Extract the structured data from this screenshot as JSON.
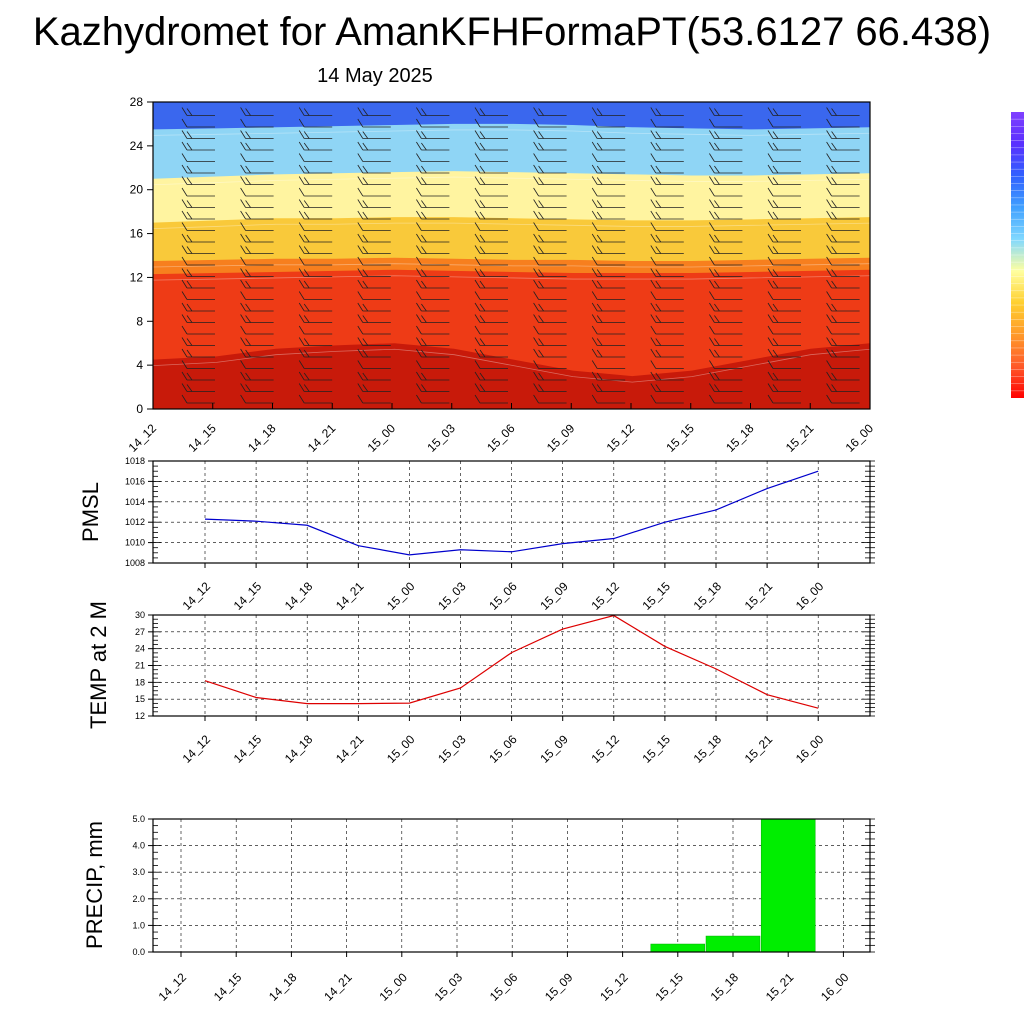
{
  "header": {
    "title": "Kazhydromet for AmanKFHFormaPT(53.6127 66.438)",
    "date": "14 May 2025"
  },
  "chart_data": [
    {
      "type": "heatmap",
      "name": "vertical-cross-section",
      "x": [
        "14_12",
        "14_15",
        "14_18",
        "14_21",
        "15_00",
        "15_03",
        "15_06",
        "15_09",
        "15_12",
        "15_15",
        "15_18",
        "15_21",
        "16_00"
      ],
      "y_ticks": [
        "0",
        "4",
        "8",
        "12",
        "16",
        "20",
        "24",
        "28"
      ],
      "ylim": [
        0,
        28
      ],
      "levels_per_column": [
        [
          4.5,
          12.3,
          13.5,
          17.0,
          21.0,
          25.5
        ],
        [
          4.8,
          12.4,
          13.6,
          17.2,
          21.2,
          25.6
        ],
        [
          5.5,
          12.5,
          13.7,
          17.4,
          21.4,
          25.7
        ],
        [
          5.8,
          12.6,
          13.7,
          17.4,
          21.5,
          25.8
        ],
        [
          6.0,
          12.7,
          13.8,
          17.5,
          21.6,
          25.9
        ],
        [
          5.5,
          12.6,
          13.7,
          17.5,
          21.7,
          26.0
        ],
        [
          4.5,
          12.5,
          13.6,
          17.4,
          21.6,
          26.0
        ],
        [
          3.5,
          12.4,
          13.6,
          17.3,
          21.5,
          25.9
        ],
        [
          3.0,
          12.4,
          13.5,
          17.2,
          21.4,
          25.7
        ],
        [
          3.5,
          12.4,
          13.5,
          17.2,
          21.3,
          25.6
        ],
        [
          4.5,
          12.5,
          13.6,
          17.3,
          21.3,
          25.5
        ],
        [
          5.5,
          12.6,
          13.7,
          17.4,
          21.4,
          25.6
        ],
        [
          6.0,
          12.7,
          13.8,
          17.5,
          21.5,
          25.7
        ]
      ],
      "colors": [
        "#c81a0a",
        "#ee3b16",
        "#f77f1e",
        "#f9c93a",
        "#fff4a0",
        "#8fd5f5",
        "#3a67ee",
        "#2a1dee",
        "#6a2df2",
        "#8f50f5"
      ]
    },
    {
      "type": "line",
      "name": "pmsl",
      "ylabel": "PMSL",
      "x": [
        "14_12",
        "14_15",
        "14_18",
        "14_21",
        "15_00",
        "15_03",
        "15_06",
        "15_09",
        "15_12",
        "15_15",
        "15_18",
        "15_21",
        "16_00"
      ],
      "values": [
        1012.3,
        1012.1,
        1011.7,
        1009.7,
        1008.8,
        1009.3,
        1009.1,
        1009.9,
        1010.4,
        1012.0,
        1013.2,
        1015.3,
        1017.0
      ],
      "ylim": [
        1008,
        1018
      ],
      "y_ticks": [
        "1008",
        "1010",
        "1012",
        "1014",
        "1016",
        "1018"
      ],
      "color": "#0000cc",
      "grid": true
    },
    {
      "type": "line",
      "name": "temp2m",
      "ylabel": "TEMP at 2 M",
      "x": [
        "14_12",
        "14_15",
        "14_18",
        "14_21",
        "15_00",
        "15_03",
        "15_06",
        "15_09",
        "15_12",
        "15_15",
        "15_18",
        "15_21",
        "16_00"
      ],
      "values": [
        18.3,
        15.3,
        14.2,
        14.2,
        14.3,
        17.0,
        23.3,
        27.5,
        29.9,
        24.4,
        20.4,
        15.8,
        13.4
      ],
      "ylim": [
        12,
        30
      ],
      "y_ticks": [
        "12",
        "15",
        "18",
        "21",
        "24",
        "27",
        "30"
      ],
      "color": "#dd0000",
      "grid": true
    },
    {
      "type": "bar",
      "name": "precip",
      "ylabel": "PRECIP, mm",
      "x": [
        "14_12",
        "14_15",
        "14_18",
        "14_21",
        "15_00",
        "15_03",
        "15_06",
        "15_09",
        "15_12",
        "15_15",
        "15_18",
        "15_21",
        "16_00"
      ],
      "values": [
        0,
        0,
        0,
        0,
        0,
        0,
        0,
        0,
        0,
        0.3,
        0.6,
        5.0,
        0
      ],
      "ylim": [
        0,
        5
      ],
      "y_ticks": [
        "0.0",
        "1.0",
        "2.0",
        "3.0",
        "4.0",
        "5.0"
      ],
      "color": "#00ee00",
      "grid": true
    }
  ],
  "colorbar": {
    "colors": [
      "#ff0000",
      "#ff5a2a",
      "#ff9a2a",
      "#ffd030",
      "#ffffa0",
      "#80d8ff",
      "#40a0ff",
      "#3060ff",
      "#5a30ff",
      "#8040ff"
    ]
  }
}
